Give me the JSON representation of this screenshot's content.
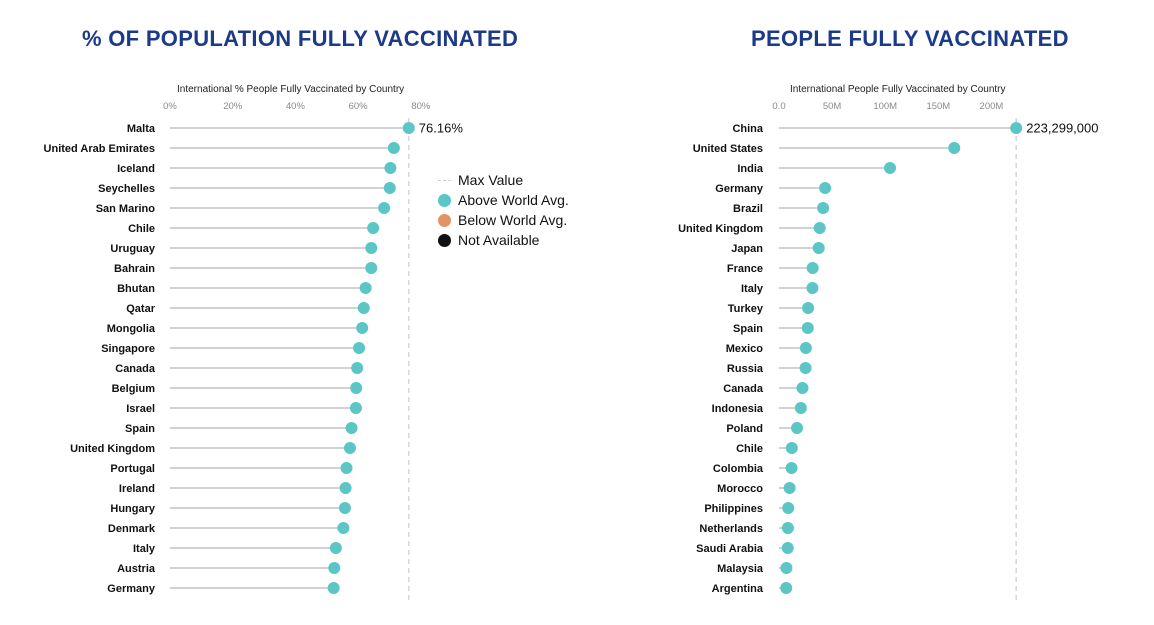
{
  "titles": {
    "left": "% OF POPULATION FULLY VACCINATED",
    "right": "PEOPLE FULLY VACCINATED"
  },
  "legend": {
    "items": [
      {
        "label": "Max Value",
        "kind": "dash",
        "color": "#d0d0d0"
      },
      {
        "label": "Above World Avg.",
        "kind": "dot",
        "color": "#5cc6c6"
      },
      {
        "label": "Below World Avg.",
        "kind": "dot",
        "color": "#e29468"
      },
      {
        "label": "Not Available",
        "kind": "dot",
        "color": "#111111"
      }
    ]
  },
  "colors": {
    "above": "#5cc6c6",
    "below": "#e29468",
    "na": "#111111",
    "title": "#1b3a87"
  },
  "chart_data": [
    {
      "type": "lollipop",
      "title": "International % People Fully Vaccinated by Country",
      "xlim": [
        0,
        85
      ],
      "xticks": [
        0,
        20,
        40,
        60,
        80
      ],
      "xtick_labels": [
        "0%",
        "20%",
        "40%",
        "60%",
        "80%"
      ],
      "grid": false,
      "max_value": 76.16,
      "max_label": "76.16%",
      "categories": [
        "Malta",
        "United Arab Emirates",
        "Iceland",
        "Seychelles",
        "San Marino",
        "Chile",
        "Uruguay",
        "Bahrain",
        "Bhutan",
        "Qatar",
        "Mongolia",
        "Singapore",
        "Canada",
        "Belgium",
        "Israel",
        "Spain",
        "United Kingdom",
        "Portugal",
        "Ireland",
        "Hungary",
        "Denmark",
        "Italy",
        "Austria",
        "Germany"
      ],
      "values": [
        76.16,
        71.4,
        70.3,
        70.1,
        68.3,
        64.8,
        64.2,
        64.2,
        62.4,
        61.8,
        61.3,
        60.3,
        59.7,
        59.4,
        59.3,
        57.9,
        57.4,
        56.3,
        56.0,
        55.8,
        55.3,
        52.9,
        52.4,
        52.2
      ],
      "status": [
        "above",
        "above",
        "above",
        "above",
        "above",
        "above",
        "above",
        "above",
        "above",
        "above",
        "above",
        "above",
        "above",
        "above",
        "above",
        "above",
        "above",
        "above",
        "above",
        "above",
        "above",
        "above",
        "above",
        "above"
      ]
    },
    {
      "type": "lollipop",
      "title": "International People Fully Vaccinated by Country",
      "xlim": [
        0,
        225000000
      ],
      "xticks": [
        0,
        50000000,
        100000000,
        150000000,
        200000000
      ],
      "xtick_labels": [
        "0.0",
        "50M",
        "100M",
        "150M",
        "200M"
      ],
      "grid": false,
      "max_value": 223299000,
      "max_label": "223,299,000",
      "categories": [
        "China",
        "United States",
        "India",
        "Germany",
        "Brazil",
        "United Kingdom",
        "Japan",
        "France",
        "Italy",
        "Turkey",
        "Spain",
        "Mexico",
        "Russia",
        "Canada",
        "Indonesia",
        "Poland",
        "Chile",
        "Colombia",
        "Morocco",
        "Philippines",
        "Netherlands",
        "Saudi Arabia",
        "Malaysia",
        "Argentina"
      ],
      "values": [
        223299000,
        165000000,
        104500000,
        43400000,
        41500000,
        38300000,
        37400000,
        31700000,
        31500000,
        27400000,
        27100000,
        25300000,
        25000000,
        22100000,
        20600000,
        17000000,
        12100000,
        11800000,
        10000000,
        8700000,
        8400000,
        8200000,
        7000000,
        6800000
      ],
      "status": [
        "above",
        "above",
        "above",
        "above",
        "above",
        "above",
        "above",
        "above",
        "above",
        "above",
        "above",
        "above",
        "above",
        "above",
        "above",
        "above",
        "above",
        "above",
        "above",
        "above",
        "above",
        "above",
        "above",
        "above"
      ]
    }
  ]
}
